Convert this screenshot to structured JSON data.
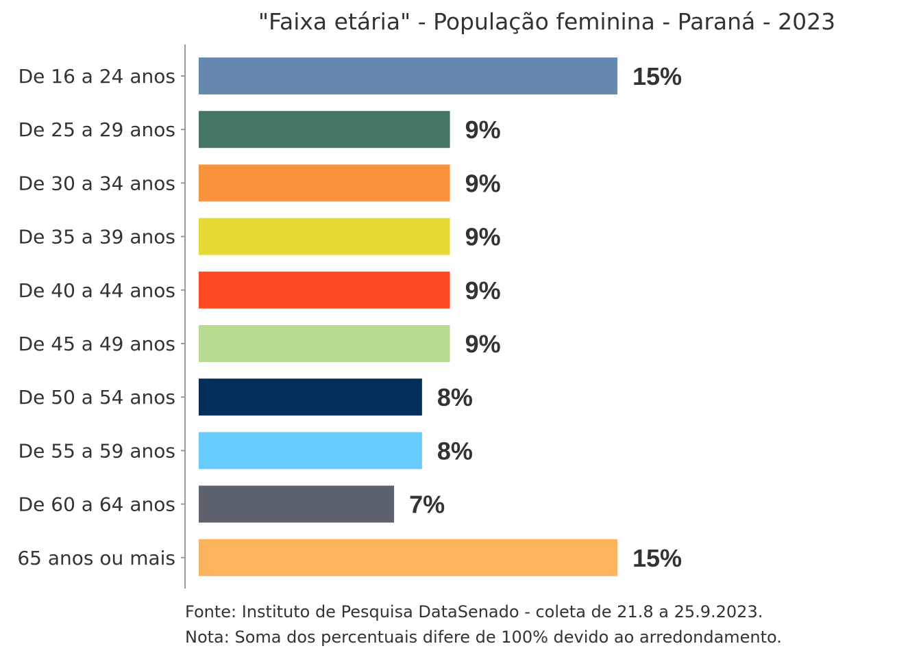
{
  "chart_data": {
    "type": "bar",
    "orientation": "horizontal",
    "title": "\"Faixa etária\" - População feminina - Paraná - 2023",
    "categories": [
      "De 16 a 24 anos",
      "De 25 a 29 anos",
      "De 30 a 34 anos",
      "De 35 a 39 anos",
      "De 40 a 44 anos",
      "De 45 a 49 anos",
      "De 50 a 54 anos",
      "De 55 a 59 anos",
      "De 60 a 64 anos",
      "65 anos ou mais"
    ],
    "values": [
      15,
      9,
      9,
      9,
      9,
      9,
      8,
      8,
      7,
      15
    ],
    "value_labels": [
      "15%",
      "9%",
      "9%",
      "9%",
      "9%",
      "9%",
      "8%",
      "8%",
      "7%",
      "15%"
    ],
    "colors": [
      "#6689B0",
      "#457563",
      "#F9923C",
      "#E5D935",
      "#FE4B21",
      "#B8DC8F",
      "#02305A",
      "#67CBFD",
      "#5C636E",
      "#FBB35E"
    ],
    "xlim": [
      0,
      15
    ],
    "xlabel": "",
    "ylabel": "",
    "grid": false,
    "legend": "none",
    "caption": [
      "Fonte: Instituto de Pesquisa DataSenado - coleta de 21.8 a 25.9.2023.",
      "Nota: Soma dos percentuais difere de 100% devido ao arredondamento."
    ]
  }
}
